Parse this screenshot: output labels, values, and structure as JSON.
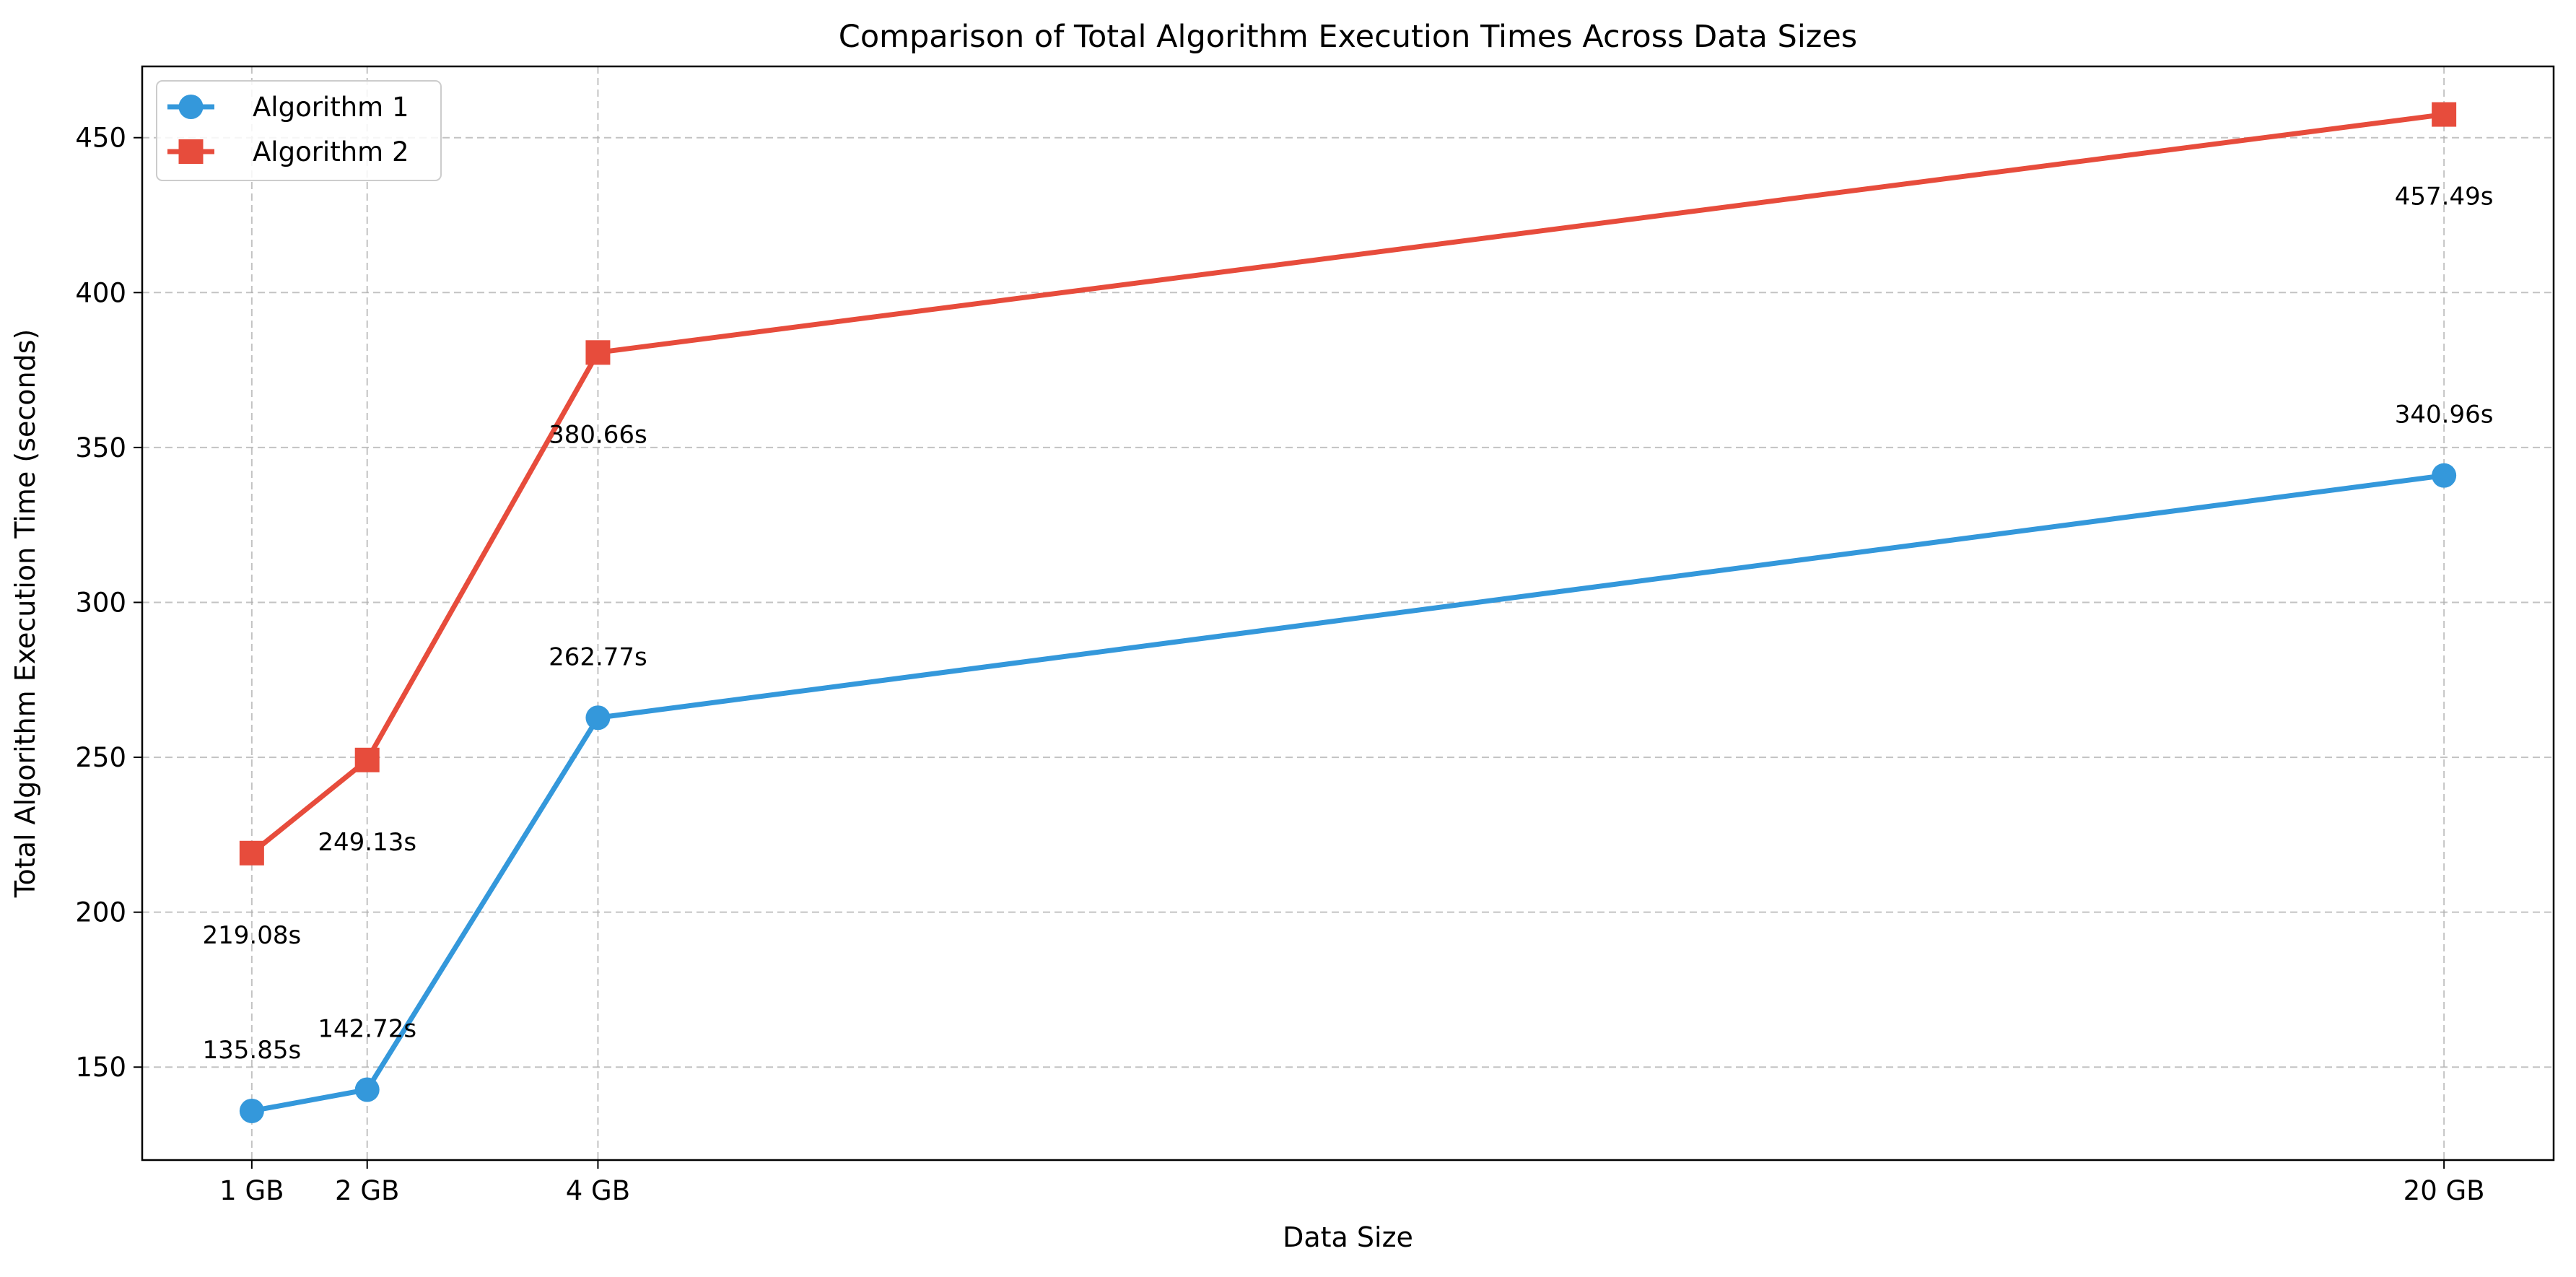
{
  "chart_data": {
    "type": "line",
    "title": "Comparison of Total Algorithm Execution Times Across Data Sizes",
    "xlabel": "Data Size",
    "ylabel": "Total Algorithm Execution Time (seconds)",
    "x": [
      1,
      2,
      4,
      20
    ],
    "x_tick_labels": [
      "1 GB",
      "2 GB",
      "4 GB",
      "20 GB"
    ],
    "y_ticks": [
      150,
      200,
      250,
      300,
      350,
      400,
      450
    ],
    "xlim": [
      0.05,
      20.95
    ],
    "ylim": [
      120,
      473
    ],
    "grid": true,
    "legend_position": "upper-left",
    "series": [
      {
        "name": "Algorithm 1",
        "color": "#3498db",
        "marker": "circle",
        "values": [
          135.85,
          142.72,
          262.77,
          340.96
        ],
        "labels": [
          "135.85s",
          "142.72s",
          "262.77s",
          "340.96s"
        ]
      },
      {
        "name": "Algorithm 2",
        "color": "#e74c3c",
        "marker": "square",
        "values": [
          219.08,
          249.13,
          380.66,
          457.49
        ],
        "labels": [
          "219.08s",
          "249.13s",
          "380.66s",
          "457.49s"
        ]
      }
    ]
  }
}
